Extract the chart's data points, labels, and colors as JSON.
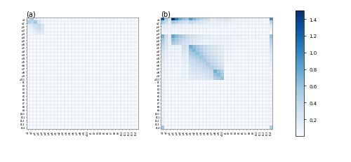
{
  "labels": [
    "s1",
    "s2",
    "p1",
    "p2",
    "p3",
    "p4",
    "p5",
    "p6",
    "d1",
    "d2",
    "d3",
    "d4",
    "d5",
    "d6",
    "d7",
    "d8",
    "d9",
    "d10",
    "f1",
    "f2",
    "f3",
    "f4",
    "f5",
    "f6",
    "f7",
    "f8",
    "f9",
    "f10",
    "f11",
    "f12",
    "f13",
    "f14"
  ],
  "title_a": "(a)",
  "title_b": "(b)",
  "colormap": "Blues",
  "vmin": 0.0,
  "vmax": 1.5,
  "colorbar_ticks": [
    0.2,
    0.4,
    0.6,
    0.8,
    1.0,
    1.2,
    1.4
  ],
  "figsize": [
    5.0,
    2.32
  ],
  "dpi": 100,
  "mat_a": [
    [
      0.3,
      0.5,
      0.15,
      0.08,
      0.05,
      0,
      0,
      0,
      0,
      0,
      0,
      0,
      0,
      0,
      0,
      0,
      0,
      0,
      0,
      0,
      0,
      0,
      0,
      0,
      0,
      0,
      0,
      0,
      0,
      0,
      0,
      0
    ],
    [
      0.45,
      0.4,
      0.55,
      0.2,
      0.08,
      0,
      0,
      0,
      0,
      0,
      0,
      0,
      0,
      0,
      0,
      0,
      0,
      0,
      0,
      0,
      0,
      0,
      0,
      0,
      0,
      0,
      0,
      0,
      0,
      0,
      0,
      0
    ],
    [
      0.12,
      0.18,
      0.25,
      0.35,
      0.22,
      0,
      0,
      0,
      0,
      0,
      0,
      0,
      0,
      0,
      0,
      0,
      0,
      0,
      0,
      0,
      0,
      0,
      0,
      0,
      0,
      0,
      0,
      0,
      0,
      0,
      0,
      0
    ],
    [
      0.05,
      0.08,
      0.18,
      0.28,
      0.2,
      0,
      0,
      0,
      0,
      0,
      0,
      0,
      0,
      0,
      0,
      0,
      0,
      0,
      0,
      0,
      0,
      0,
      0,
      0,
      0,
      0,
      0,
      0,
      0,
      0,
      0,
      0
    ],
    [
      0.02,
      0.04,
      0.1,
      0.15,
      0.12,
      0,
      0,
      0,
      0,
      0,
      0,
      0,
      0,
      0,
      0,
      0,
      0,
      0,
      0,
      0,
      0,
      0,
      0,
      0,
      0,
      0,
      0,
      0,
      0,
      0,
      0,
      0
    ],
    [
      0,
      0,
      0,
      0,
      0,
      0,
      0,
      0,
      0,
      0,
      0,
      0,
      0,
      0,
      0,
      0,
      0,
      0,
      0,
      0,
      0,
      0,
      0,
      0,
      0,
      0,
      0,
      0,
      0,
      0,
      0,
      0
    ],
    [
      0,
      0,
      0,
      0,
      0,
      0,
      0,
      0,
      0,
      0,
      0,
      0,
      0,
      0,
      0,
      0,
      0,
      0,
      0,
      0,
      0,
      0,
      0,
      0,
      0,
      0,
      0,
      0,
      0,
      0,
      0,
      0
    ],
    [
      0,
      0,
      0,
      0,
      0,
      0,
      0,
      0,
      0,
      0,
      0,
      0,
      0,
      0,
      0,
      0,
      0,
      0,
      0,
      0,
      0,
      0,
      0,
      0,
      0,
      0,
      0,
      0,
      0,
      0,
      0,
      0
    ],
    [
      0,
      0,
      0,
      0,
      0,
      0,
      0,
      0,
      0,
      0,
      0,
      0,
      0,
      0,
      0,
      0,
      0,
      0,
      0,
      0,
      0,
      0,
      0,
      0,
      0,
      0,
      0,
      0,
      0,
      0,
      0,
      0
    ],
    [
      0,
      0,
      0,
      0,
      0,
      0,
      0,
      0,
      0,
      0,
      0,
      0,
      0,
      0,
      0,
      0,
      0,
      0,
      0,
      0,
      0,
      0,
      0,
      0,
      0,
      0,
      0,
      0,
      0,
      0,
      0,
      0
    ],
    [
      0,
      0,
      0,
      0,
      0,
      0,
      0,
      0,
      0,
      0,
      0,
      0,
      0,
      0,
      0,
      0,
      0,
      0,
      0,
      0,
      0,
      0,
      0,
      0,
      0,
      0,
      0,
      0,
      0,
      0,
      0,
      0
    ],
    [
      0,
      0,
      0,
      0,
      0,
      0,
      0,
      0,
      0,
      0,
      0,
      0,
      0,
      0,
      0,
      0,
      0,
      0,
      0,
      0,
      0,
      0,
      0,
      0,
      0,
      0,
      0,
      0,
      0,
      0,
      0,
      0
    ],
    [
      0,
      0,
      0,
      0,
      0,
      0,
      0,
      0,
      0,
      0,
      0,
      0,
      0,
      0,
      0,
      0,
      0,
      0,
      0,
      0,
      0,
      0,
      0,
      0,
      0,
      0,
      0,
      0,
      0,
      0,
      0,
      0
    ],
    [
      0,
      0,
      0,
      0,
      0,
      0,
      0,
      0,
      0,
      0,
      0,
      0,
      0,
      0,
      0,
      0,
      0,
      0,
      0,
      0,
      0,
      0,
      0,
      0,
      0,
      0,
      0,
      0,
      0,
      0,
      0,
      0
    ],
    [
      0,
      0,
      0,
      0,
      0,
      0,
      0,
      0,
      0,
      0,
      0,
      0,
      0,
      0,
      0,
      0,
      0,
      0,
      0,
      0,
      0,
      0,
      0,
      0,
      0,
      0,
      0,
      0,
      0,
      0,
      0,
      0
    ],
    [
      0,
      0,
      0,
      0,
      0,
      0,
      0,
      0,
      0,
      0,
      0,
      0,
      0,
      0,
      0,
      0,
      0,
      0,
      0,
      0,
      0,
      0,
      0,
      0,
      0,
      0,
      0,
      0,
      0,
      0,
      0,
      0
    ],
    [
      0,
      0,
      0,
      0,
      0,
      0,
      0,
      0,
      0,
      0,
      0,
      0,
      0,
      0,
      0,
      0,
      0,
      0,
      0,
      0,
      0,
      0,
      0,
      0,
      0,
      0,
      0,
      0,
      0,
      0,
      0,
      0
    ],
    [
      0,
      0,
      0,
      0,
      0,
      0,
      0,
      0,
      0,
      0,
      0,
      0,
      0,
      0,
      0,
      0,
      0,
      0,
      0,
      0,
      0,
      0,
      0,
      0,
      0,
      0,
      0,
      0,
      0,
      0,
      0,
      0
    ],
    [
      0,
      0,
      0,
      0,
      0,
      0,
      0,
      0,
      0,
      0,
      0,
      0,
      0,
      0,
      0,
      0,
      0,
      0,
      0,
      0,
      0,
      0,
      0,
      0,
      0,
      0,
      0,
      0,
      0,
      0,
      0,
      0
    ],
    [
      0,
      0,
      0,
      0,
      0,
      0,
      0,
      0,
      0,
      0,
      0,
      0,
      0,
      0,
      0,
      0,
      0,
      0,
      0,
      0,
      0,
      0,
      0,
      0,
      0,
      0,
      0,
      0,
      0,
      0,
      0,
      0
    ],
    [
      0,
      0,
      0,
      0,
      0,
      0,
      0,
      0,
      0,
      0,
      0,
      0,
      0,
      0,
      0,
      0,
      0,
      0,
      0,
      0,
      0,
      0,
      0,
      0,
      0,
      0,
      0,
      0,
      0,
      0,
      0,
      0
    ],
    [
      0,
      0,
      0,
      0,
      0,
      0,
      0,
      0,
      0,
      0,
      0,
      0,
      0,
      0,
      0,
      0,
      0,
      0,
      0,
      0,
      0,
      0,
      0,
      0,
      0,
      0,
      0,
      0,
      0,
      0,
      0,
      0
    ],
    [
      0,
      0,
      0,
      0,
      0,
      0,
      0,
      0,
      0,
      0,
      0,
      0,
      0,
      0,
      0,
      0,
      0,
      0,
      0,
      0,
      0,
      0,
      0,
      0,
      0,
      0,
      0,
      0,
      0,
      0,
      0,
      0
    ],
    [
      0,
      0,
      0,
      0,
      0,
      0,
      0,
      0,
      0,
      0,
      0,
      0,
      0,
      0,
      0,
      0,
      0,
      0,
      0,
      0,
      0,
      0,
      0,
      0,
      0,
      0,
      0,
      0,
      0,
      0,
      0,
      0
    ],
    [
      0,
      0,
      0,
      0,
      0,
      0,
      0,
      0,
      0,
      0,
      0,
      0,
      0,
      0,
      0,
      0,
      0,
      0,
      0,
      0,
      0,
      0,
      0,
      0,
      0,
      0,
      0,
      0,
      0,
      0,
      0,
      0
    ],
    [
      0,
      0,
      0,
      0,
      0,
      0,
      0,
      0,
      0,
      0,
      0,
      0,
      0,
      0,
      0,
      0,
      0,
      0,
      0,
      0,
      0,
      0,
      0,
      0,
      0,
      0,
      0,
      0,
      0,
      0,
      0,
      0
    ],
    [
      0,
      0,
      0,
      0,
      0,
      0,
      0,
      0,
      0,
      0,
      0,
      0,
      0,
      0,
      0,
      0,
      0,
      0,
      0,
      0,
      0,
      0,
      0,
      0,
      0,
      0,
      0,
      0,
      0,
      0,
      0,
      0
    ],
    [
      0,
      0,
      0,
      0,
      0,
      0,
      0,
      0,
      0,
      0,
      0,
      0,
      0,
      0,
      0,
      0,
      0,
      0,
      0,
      0,
      0,
      0,
      0,
      0,
      0,
      0,
      0,
      0,
      0,
      0,
      0,
      0
    ],
    [
      0,
      0,
      0,
      0,
      0,
      0,
      0,
      0,
      0,
      0,
      0,
      0,
      0,
      0,
      0,
      0,
      0,
      0,
      0,
      0,
      0,
      0,
      0,
      0,
      0,
      0,
      0,
      0,
      0,
      0,
      0,
      0
    ],
    [
      0,
      0,
      0,
      0,
      0,
      0,
      0,
      0,
      0,
      0,
      0,
      0,
      0,
      0,
      0,
      0,
      0,
      0,
      0,
      0,
      0,
      0,
      0,
      0,
      0,
      0,
      0,
      0,
      0,
      0,
      0,
      0
    ],
    [
      0,
      0,
      0,
      0,
      0,
      0,
      0,
      0,
      0,
      0,
      0,
      0,
      0,
      0,
      0,
      0,
      0,
      0,
      0,
      0,
      0,
      0,
      0,
      0,
      0,
      0,
      0,
      0,
      0,
      0,
      0,
      0
    ],
    [
      0,
      0,
      0,
      0,
      0,
      0,
      0,
      0,
      0,
      0,
      0,
      0,
      0,
      0,
      0,
      0,
      0,
      0,
      0,
      0,
      0,
      0,
      0,
      0,
      0,
      0,
      0,
      0,
      0,
      0,
      0,
      0
    ]
  ]
}
